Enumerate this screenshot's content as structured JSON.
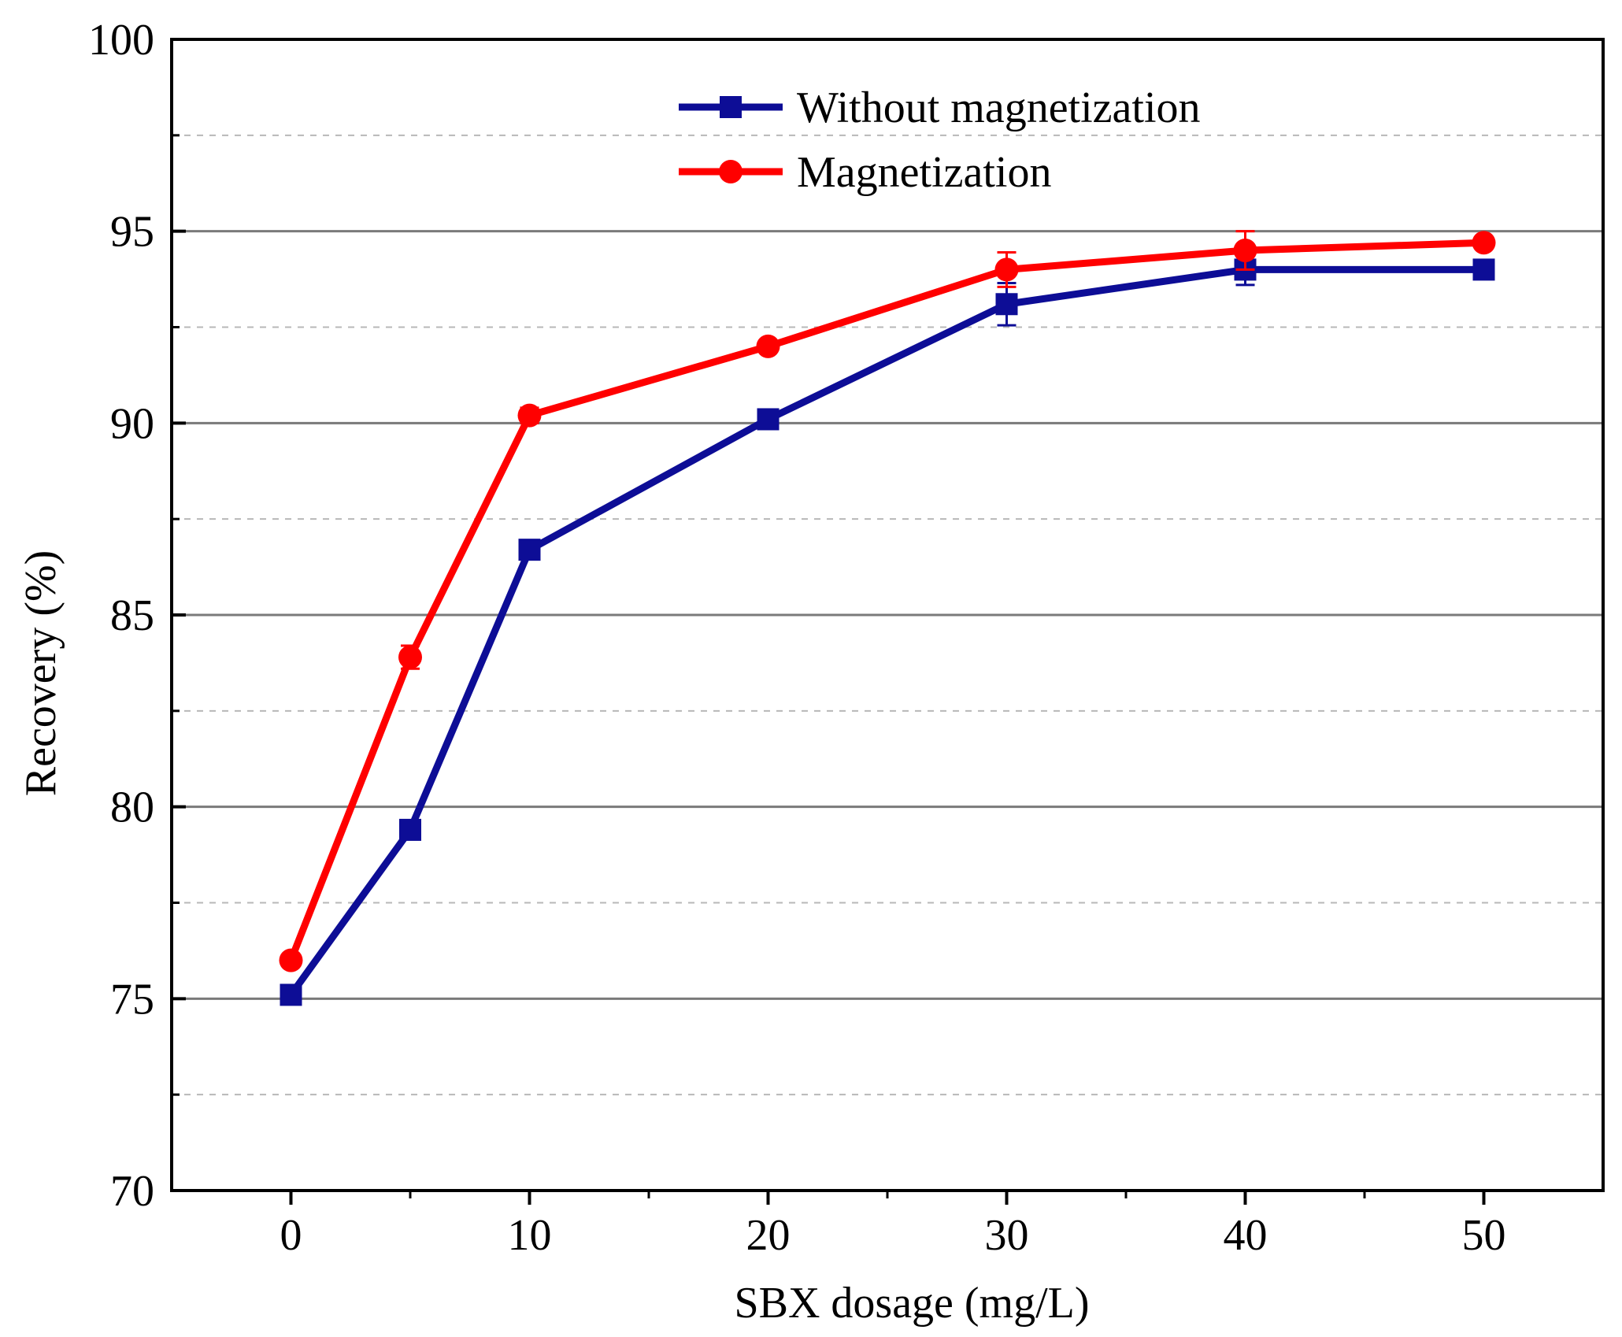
{
  "chart_data": {
    "type": "line",
    "title": "",
    "xlabel": "SBX dosage (mg/L)",
    "ylabel": "Recovery (%)",
    "xlim": [
      -5,
      55
    ],
    "ylim": [
      70,
      100
    ],
    "xticks": [
      0,
      10,
      20,
      30,
      40,
      50
    ],
    "xtick_labels": [
      "0",
      "10",
      "20",
      "30",
      "40",
      "50"
    ],
    "x_minor_ticks": [
      5,
      15,
      25,
      35,
      45
    ],
    "yticks": [
      70,
      75,
      80,
      85,
      90,
      95,
      100
    ],
    "ytick_labels": [
      "70",
      "75",
      "80",
      "85",
      "90",
      "95",
      "100"
    ],
    "y_minor_ticks": [
      72.5,
      77.5,
      82.5,
      87.5,
      92.5,
      97.5
    ],
    "grid": true,
    "legend_position": "top-center",
    "x": [
      0,
      5,
      10,
      20,
      30,
      40,
      50
    ],
    "series": [
      {
        "name": "Without  magnetization",
        "color": "#0d0d96",
        "marker": "square",
        "values": [
          75.1,
          79.4,
          86.7,
          90.1,
          93.1,
          94.0,
          94.0
        ],
        "errors": [
          0.1,
          0.2,
          0.2,
          0.2,
          0.55,
          0.4,
          0.2
        ]
      },
      {
        "name": "Magnetization",
        "color": "#ff0000",
        "marker": "circle",
        "values": [
          76.0,
          83.9,
          90.2,
          92.0,
          94.0,
          94.5,
          94.7
        ],
        "errors": [
          0.1,
          0.3,
          0.2,
          0.1,
          0.45,
          0.5,
          0.15
        ]
      }
    ]
  }
}
